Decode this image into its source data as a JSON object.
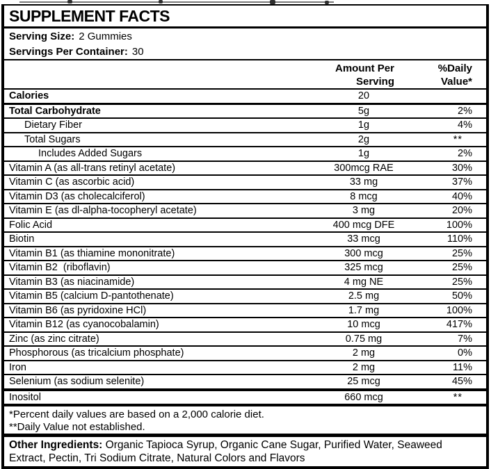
{
  "title": "SUPPLEMENT FACTS",
  "serving": {
    "size_label": "Serving Size:",
    "size_value": "2 Gummies",
    "container_label": "Servings Per Container:",
    "container_value": "30"
  },
  "columns": {
    "amount_line1": "Amount Per",
    "amount_line2": "Serving",
    "dv_line1": "%Daily",
    "dv_line2": "Value*"
  },
  "rows": [
    {
      "name": "Calories",
      "amount": "20",
      "dv": "",
      "bold": true,
      "indent": 0,
      "sep": "m"
    },
    {
      "name": "Total Carbohydrate",
      "amount": "5g",
      "dv": "2%",
      "bold": true,
      "indent": 0,
      "sep": "n"
    },
    {
      "name": "Dietary Fiber",
      "amount": "1g",
      "dv": "4%",
      "bold": false,
      "indent": 1,
      "sep": "n"
    },
    {
      "name": "Total Sugars",
      "amount": "2g",
      "dv": "**",
      "bold": false,
      "indent": 1,
      "sep": "n"
    },
    {
      "name": "Includes Added Sugars",
      "amount": "1g",
      "dv": "2%",
      "bold": false,
      "indent": 2,
      "sep": "n"
    },
    {
      "name": "Vitamin A (as all-trans retinyl acetate)",
      "amount": "300mcg RAE",
      "dv": "30%",
      "bold": false,
      "indent": 0,
      "sep": "n"
    },
    {
      "name": "Vitamin C (as ascorbic acid)",
      "amount": "33 mg",
      "dv": "37%",
      "bold": false,
      "indent": 0,
      "sep": "n"
    },
    {
      "name": "Vitamin D3 (as cholecalciferol)",
      "amount": "8 mcg",
      "dv": "40%",
      "bold": false,
      "indent": 0,
      "sep": "n"
    },
    {
      "name": "Vitamin E (as dl-alpha-tocopheryl acetate)",
      "amount": "3 mg",
      "dv": "20%",
      "bold": false,
      "indent": 0,
      "sep": "n"
    },
    {
      "name": "Folic Acid",
      "amount": "400 mcg DFE",
      "dv": "100%",
      "bold": false,
      "indent": 0,
      "sep": "n"
    },
    {
      "name": "Biotin",
      "amount": "33 mcg",
      "dv": "110%",
      "bold": false,
      "indent": 0,
      "sep": "n"
    },
    {
      "name": "Vitamin B1 (as thiamine mononitrate)",
      "amount": "300 mcg",
      "dv": "25%",
      "bold": false,
      "indent": 0,
      "sep": "n"
    },
    {
      "name": "Vitamin B2  (riboflavin)",
      "amount": "325 mcg",
      "dv": "25%",
      "bold": false,
      "indent": 0,
      "sep": "n"
    },
    {
      "name": "Vitamin B3 (as niacinamide)",
      "amount": "4 mg NE",
      "dv": "25%",
      "bold": false,
      "indent": 0,
      "sep": "n"
    },
    {
      "name": "Vitamin B5 (calcium D-pantothenate)",
      "amount": "2.5 mg",
      "dv": "50%",
      "bold": false,
      "indent": 0,
      "sep": "n"
    },
    {
      "name": "Vitamin B6 (as pyridoxine HCl)",
      "amount": "1.7 mg",
      "dv": "100%",
      "bold": false,
      "indent": 0,
      "sep": "n"
    },
    {
      "name": "Vitamin B12 (as cyanocobalamin)",
      "amount": "10 mcg",
      "dv": "417%",
      "bold": false,
      "indent": 0,
      "sep": "n"
    },
    {
      "name": "Zinc (as zinc citrate)",
      "amount": "0.75 mg",
      "dv": "7%",
      "bold": false,
      "indent": 0,
      "sep": "n"
    },
    {
      "name": "Phosphorous (as tricalcium phosphate)",
      "amount": "2 mg",
      "dv": "0%",
      "bold": false,
      "indent": 0,
      "sep": "n"
    },
    {
      "name": "Iron",
      "amount": "2 mg",
      "dv": "11%",
      "bold": false,
      "indent": 0,
      "sep": "n"
    },
    {
      "name": "Selenium (as sodium selenite)",
      "amount": "25 mcg",
      "dv": "45%",
      "bold": false,
      "indent": 0,
      "sep": "t"
    },
    {
      "name": "Inositol",
      "amount": "660 mcg",
      "dv": "**",
      "bold": false,
      "indent": 0,
      "sep": "t"
    }
  ],
  "footnotes": [
    "*Percent daily values are based on a 2,000 calorie diet.",
    "**Daily Value not established."
  ],
  "other_ingredients": {
    "label": "Other Ingredients:",
    "text": "Organic Tapioca Syrup, Organic Cane Sugar, Purified Water, Seaweed Extract, Pectin, Tri Sodium Citrate, Natural Colors and Flavors"
  },
  "colors": {
    "text": "#000000",
    "background": "#ffffff",
    "border": "#000000"
  }
}
